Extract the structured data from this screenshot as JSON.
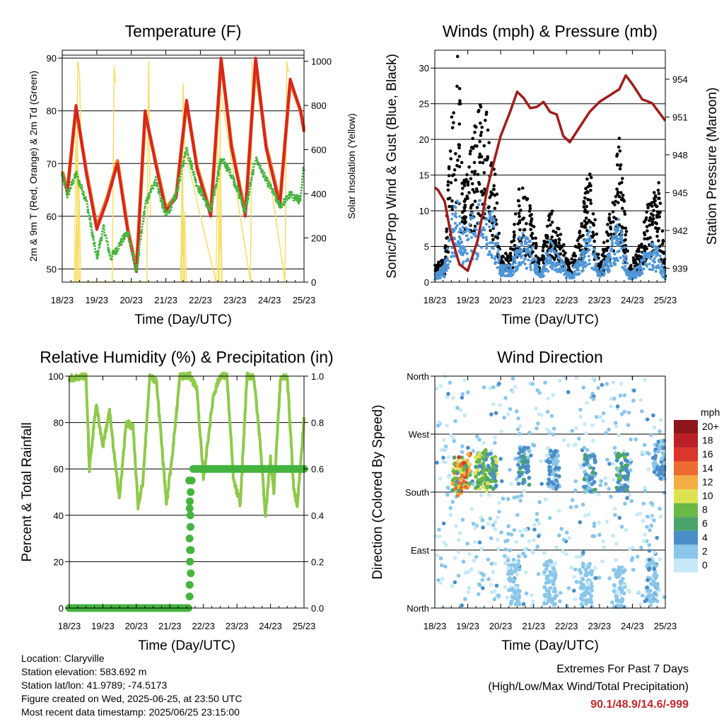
{
  "chart_data": [
    {
      "type": "line",
      "title": "Temperature (F)",
      "xlabel": "Time (Day/UTC)",
      "ylabel": "2m & 9m T (Red, Orange) & 2m Td (Green)",
      "ylabel_right": "Solar Insolation (Yellow)",
      "x_ticks": [
        "18/23",
        "19/23",
        "20/23",
        "21/23",
        "22/23",
        "23/23",
        "24/23",
        "25/23"
      ],
      "ylim": [
        47.5,
        91.5
      ],
      "y_ticks": [
        50,
        60,
        70,
        80,
        90
      ],
      "ylim_right": [
        0,
        1050
      ],
      "y_ticks_right": [
        0,
        200,
        400,
        600,
        800,
        1000
      ],
      "grid": "horizontal at left ticks",
      "series": [
        {
          "name": "2m T",
          "color": "#d7261e",
          "x": [
            0,
            0.15,
            0.4,
            0.7,
            1.0,
            1.3,
            1.6,
            1.9,
            2.15,
            2.4,
            2.7,
            3.0,
            3.3,
            3.6,
            3.9,
            4.3,
            4.6,
            4.9,
            5.3,
            5.6,
            5.9,
            6.3,
            6.6,
            6.9,
            7.0
          ],
          "values": [
            68,
            64.5,
            81,
            68,
            57.5,
            63,
            70,
            57,
            49.5,
            80,
            70,
            61,
            63.5,
            82,
            69,
            60,
            90,
            73,
            60,
            90,
            73,
            62,
            86,
            80,
            76
          ]
        },
        {
          "name": "9m T",
          "color": "#f07d25",
          "x": [
            0,
            0.15,
            0.4,
            0.7,
            1.0,
            1.3,
            1.6,
            1.9,
            2.15,
            2.4,
            2.7,
            3.0,
            3.3,
            3.6,
            3.9,
            4.3,
            4.6,
            4.9,
            5.3,
            5.6,
            5.9,
            6.3,
            6.6,
            6.9,
            7.0
          ],
          "values": [
            68.5,
            65,
            80.5,
            68.5,
            58,
            63.5,
            70.5,
            57.5,
            50,
            79.5,
            70.5,
            61.5,
            64,
            81.5,
            69.5,
            60.5,
            89.5,
            73.5,
            60.5,
            89.5,
            73.5,
            62.5,
            85.5,
            80,
            76.5
          ]
        },
        {
          "name": "2m Td",
          "color": "#45b43f",
          "x": [
            0,
            0.15,
            0.4,
            0.7,
            1.0,
            1.2,
            1.4,
            1.6,
            1.9,
            2.15,
            2.4,
            2.7,
            3.0,
            3.3,
            3.6,
            3.9,
            4.3,
            4.6,
            4.9,
            5.3,
            5.6,
            5.9,
            6.3,
            6.6,
            6.9,
            7.0
          ],
          "values": [
            68,
            64,
            68,
            63,
            52,
            58,
            52,
            54,
            57,
            49.5,
            62,
            67,
            60,
            64,
            73,
            66,
            61,
            71,
            68,
            61,
            71,
            67,
            62,
            64,
            63,
            70
          ]
        },
        {
          "name": "Solar Insolation",
          "axis": "right",
          "color": "#f5de63",
          "x": [
            0.4,
            0.45,
            0.5,
            0.55,
            0.6,
            1.45,
            1.5,
            1.55,
            1.6,
            2.45,
            2.5,
            2.55,
            3.45,
            3.5,
            3.55,
            4.45,
            4.5,
            4.55,
            5.45,
            5.5,
            5.55,
            6.45,
            6.5,
            6.55
          ],
          "values": [
            0,
            1000,
            950,
            600,
            0,
            0,
            980,
            900,
            0,
            0,
            1000,
            300,
            0,
            900,
            600,
            0,
            950,
            900,
            0,
            1000,
            980,
            0,
            1000,
            950
          ]
        }
      ]
    },
    {
      "type": "line",
      "title": "Winds (mph) & Pressure (mb)",
      "xlabel": "Time (Day/UTC)",
      "ylabel": "Sonic/Prop Wind & Gust (Blue, Black)",
      "ylabel_right": "Station Pressure (Maroon)",
      "x_ticks": [
        "18/23",
        "19/23",
        "20/23",
        "21/23",
        "22/23",
        "23/23",
        "24/23",
        "25/23"
      ],
      "ylim": [
        0,
        32.5
      ],
      "y_ticks": [
        0,
        5,
        10,
        15,
        20,
        25,
        30
      ],
      "ylim_right": [
        937.9,
        956.3
      ],
      "y_ticks_right": [
        939,
        942,
        945,
        948,
        951,
        954
      ],
      "y_tick_labels_right": [
        "939",
        "942",
        "945",
        "948",
        "951",
        "954"
      ],
      "grid": "horizontal at left ticks",
      "series": [
        {
          "name": "Sonic/Prop Wind",
          "color": "#4f96d6",
          "x": [
            0,
            0.3,
            0.5,
            0.7,
            0.9,
            1.2,
            1.5,
            1.8,
            2.0,
            2.3,
            2.6,
            2.9,
            3.2,
            3.5,
            3.8,
            4.1,
            4.4,
            4.7,
            5.0,
            5.3,
            5.6,
            5.9,
            6.2,
            6.5,
            6.8,
            7.0
          ],
          "values": [
            1,
            2,
            8,
            10,
            6,
            9,
            10,
            8,
            2,
            2,
            6,
            5,
            1,
            5,
            3,
            1,
            3,
            7,
            1,
            4,
            8,
            1,
            2,
            5,
            4,
            1
          ]
        },
        {
          "name": "Gust",
          "color": "#000000",
          "x": [
            0,
            0.3,
            0.5,
            0.7,
            0.9,
            1.2,
            1.5,
            1.8,
            2.0,
            2.3,
            2.6,
            2.9,
            3.2,
            3.5,
            3.8,
            4.1,
            4.4,
            4.7,
            5.0,
            5.3,
            5.6,
            5.9,
            6.2,
            6.5,
            6.8,
            7.0
          ],
          "values": [
            2,
            3,
            20,
            27,
            12,
            18,
            24,
            16,
            3,
            4,
            12,
            9,
            2,
            9,
            6,
            2,
            6,
            15,
            2,
            8,
            17,
            2,
            4,
            10,
            12,
            2
          ]
        },
        {
          "name": "Station Pressure",
          "axis": "right",
          "color": "#a01c1c",
          "x": [
            0,
            0.1,
            0.3,
            0.5,
            0.75,
            1.0,
            1.3,
            1.6,
            1.8,
            2.0,
            2.3,
            2.5,
            2.7,
            2.9,
            3.1,
            3.3,
            3.5,
            3.7,
            3.9,
            4.1,
            4.4,
            4.7,
            5.0,
            5.3,
            5.6,
            5.8,
            6.0,
            6.3,
            6.6,
            6.8,
            7.0
          ],
          "values": [
            945.4,
            945.2,
            944.3,
            941.5,
            939.3,
            938.8,
            941.2,
            945.4,
            947.5,
            949.5,
            951.5,
            953,
            952.5,
            951.7,
            951.8,
            952.2,
            951.4,
            951.2,
            949.5,
            949,
            950.2,
            951.4,
            952.2,
            952.7,
            953.2,
            954.3,
            953.6,
            952.4,
            952.1,
            951.4,
            950.7
          ]
        }
      ]
    },
    {
      "type": "line",
      "title": "Relative Humidity (%) & Precipitation (in)",
      "xlabel": "Time (Day/UTC)",
      "ylabel": "Percent & Total Rainfall",
      "x_ticks": [
        "18/23",
        "19/23",
        "20/23",
        "21/23",
        "22/23",
        "23/23",
        "24/23",
        "25/23"
      ],
      "ylim": [
        0,
        100
      ],
      "y_ticks": [
        0,
        20,
        40,
        60,
        80,
        100
      ],
      "ylim_right": [
        0,
        1
      ],
      "y_ticks_right": [
        0,
        0.2,
        0.4,
        0.6,
        0.8,
        1
      ],
      "y_tick_labels_right": [
        "0.0",
        "0.2",
        "0.4",
        "0.6",
        "0.8",
        "1.0"
      ],
      "grid": "horizontal at left ticks",
      "series": [
        {
          "name": "Relative Humidity",
          "color": "#8fc94a",
          "x": [
            0,
            0.5,
            0.6,
            0.8,
            1.0,
            1.2,
            1.4,
            1.5,
            1.7,
            1.9,
            2.05,
            2.2,
            2.4,
            2.6,
            2.9,
            3.1,
            3.3,
            3.5,
            3.6,
            3.8,
            4.0,
            4.3,
            4.5,
            4.7,
            4.9,
            5.1,
            5.3,
            5.5,
            5.7,
            5.85,
            6.0,
            6.1,
            6.3,
            6.5,
            6.7,
            6.8,
            6.9,
            7.0
          ],
          "values": [
            99,
            100,
            60,
            88,
            70,
            85,
            58,
            48,
            80,
            78,
            44,
            55,
            100,
            98,
            45,
            70,
            100,
            100,
            100,
            95,
            56,
            92,
            100,
            100,
            55,
            45,
            100,
            100,
            70,
            40,
            65,
            50,
            99,
            100,
            50,
            45,
            62,
            82
          ]
        },
        {
          "name": "Total Rainfall",
          "axis": "right",
          "color": "#45b43f",
          "x": [
            0,
            3.55,
            3.57,
            3.6,
            3.62,
            3.65,
            3.7,
            7.0
          ],
          "values": [
            0,
            0,
            0.05,
            0.25,
            0.43,
            0.55,
            0.6,
            0.6
          ]
        }
      ]
    },
    {
      "type": "scatter",
      "title": "Wind Direction",
      "xlabel": "Time (Day/UTC)",
      "ylabel": "Direction (Colored By Speed)",
      "x_ticks": [
        "18/23",
        "19/23",
        "20/23",
        "21/23",
        "22/23",
        "23/23",
        "24/23",
        "25/23"
      ],
      "ylim": [
        0,
        360
      ],
      "y_ticks": [
        0,
        90,
        180,
        270,
        360
      ],
      "y_tick_labels": [
        "North",
        "East",
        "South",
        "West",
        "North"
      ],
      "grid": "horizontal at ticks",
      "legend": {
        "title": "mph",
        "placement": "right",
        "labels": [
          "0",
          "2",
          "4",
          "6",
          "8",
          "10",
          "12",
          "14",
          "16",
          "18",
          "20+"
        ],
        "colors": [
          "#c6e9f7",
          "#8ac6ea",
          "#4a8dc8",
          "#4aa46a",
          "#6ab846",
          "#dde253",
          "#f4ae45",
          "#ec6b2e",
          "#d9352a",
          "#b91f24",
          "#8c161a"
        ]
      },
      "clusters": [
        {
          "x": 0.7,
          "direction": 205,
          "speed": 12
        },
        {
          "x": 0.9,
          "direction": 210,
          "speed": 14
        },
        {
          "x": 1.4,
          "direction": 212,
          "speed": 9
        },
        {
          "x": 1.7,
          "direction": 215,
          "speed": 8
        },
        {
          "x": 2.7,
          "direction": 220,
          "speed": 5
        },
        {
          "x": 3.6,
          "direction": 215,
          "speed": 4
        },
        {
          "x": 4.7,
          "direction": 210,
          "speed": 5
        },
        {
          "x": 5.7,
          "direction": 210,
          "speed": 6
        },
        {
          "x": 6.8,
          "direction": 230,
          "speed": 4
        },
        {
          "x": 2.4,
          "direction": 40,
          "speed": 2
        },
        {
          "x": 3.5,
          "direction": 40,
          "speed": 2
        },
        {
          "x": 4.6,
          "direction": 35,
          "speed": 2
        },
        {
          "x": 5.6,
          "direction": 30,
          "speed": 2
        },
        {
          "x": 6.6,
          "direction": 40,
          "speed": 3
        }
      ]
    }
  ],
  "info": {
    "location": "Location: Claryville",
    "elevation": "Station elevation: 583.692 m",
    "latlon": "Station lat/lon: 41.9789; -74.5173",
    "created": "Figure created on Wed, 2025-06-25, at 23:50 UTC",
    "recent": "Most recent data timestamp: 2025/06/25 23:15:00"
  },
  "extremes": {
    "line1": "Extremes For Past 7 Days",
    "line2": "(High/Low/Max Wind/Total Precipitation)",
    "values": "90.1/48.9/14.6/-999"
  }
}
